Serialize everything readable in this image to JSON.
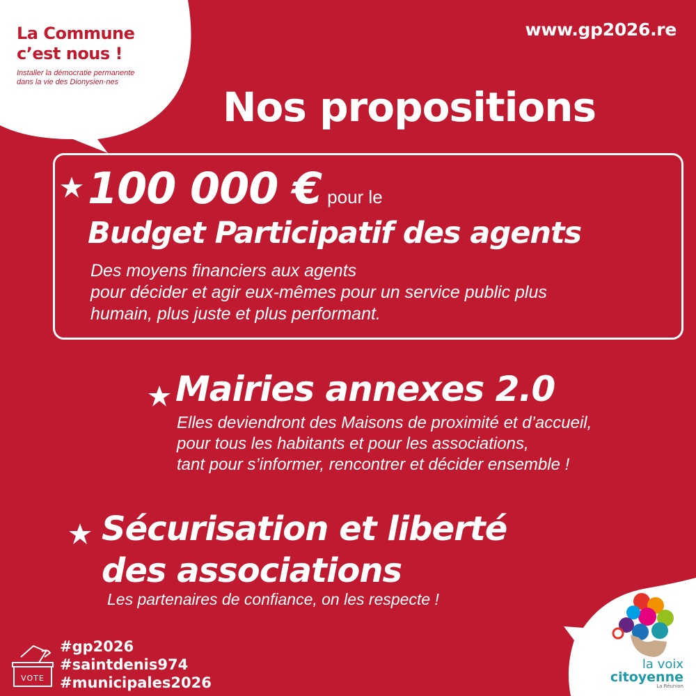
{
  "bubble": {
    "title_line1": "La Commune",
    "title_line2": "c’est nous !",
    "subtitle_line1": "Installer la démocratie permanente",
    "subtitle_line2": "dans la vie des Dionysien·nes"
  },
  "url": "www.gp2026.re",
  "title": "Nos propositions",
  "propositions": [
    {
      "amount": "100 000 €",
      "amount_suffix": "pour le",
      "heading": "Budget Participatif des agents",
      "desc_lines": [
        "Des moyens financiers aux agents",
        "pour décider et agir eux-mêmes pour un service public plus",
        "humain, plus juste et plus performant."
      ]
    },
    {
      "heading": "Mairies annexes 2.0",
      "desc_lines": [
        "Elles deviendront des Maisons de proximité et d’accueil,",
        "pour tous les habitants et pour les associations,",
        "tant pour s’informer, rencontrer et décider ensemble !"
      ]
    },
    {
      "heading_lines": [
        "Sécurisation et liberté",
        "des associations"
      ],
      "desc_lines": [
        "Les partenaires de confiance, on les respecte !"
      ]
    }
  ],
  "hashtags": [
    "#gp2026",
    "#saintdenis974",
    "#municipales2026"
  ],
  "vote_label": "VOTE",
  "logo": {
    "line1": "la voix",
    "line2": "citoyenne",
    "line3": "La Réunion"
  },
  "colors": {
    "background": "#bf1a2f",
    "text": "#ffffff",
    "logo_teal": "#1e9aa6"
  }
}
